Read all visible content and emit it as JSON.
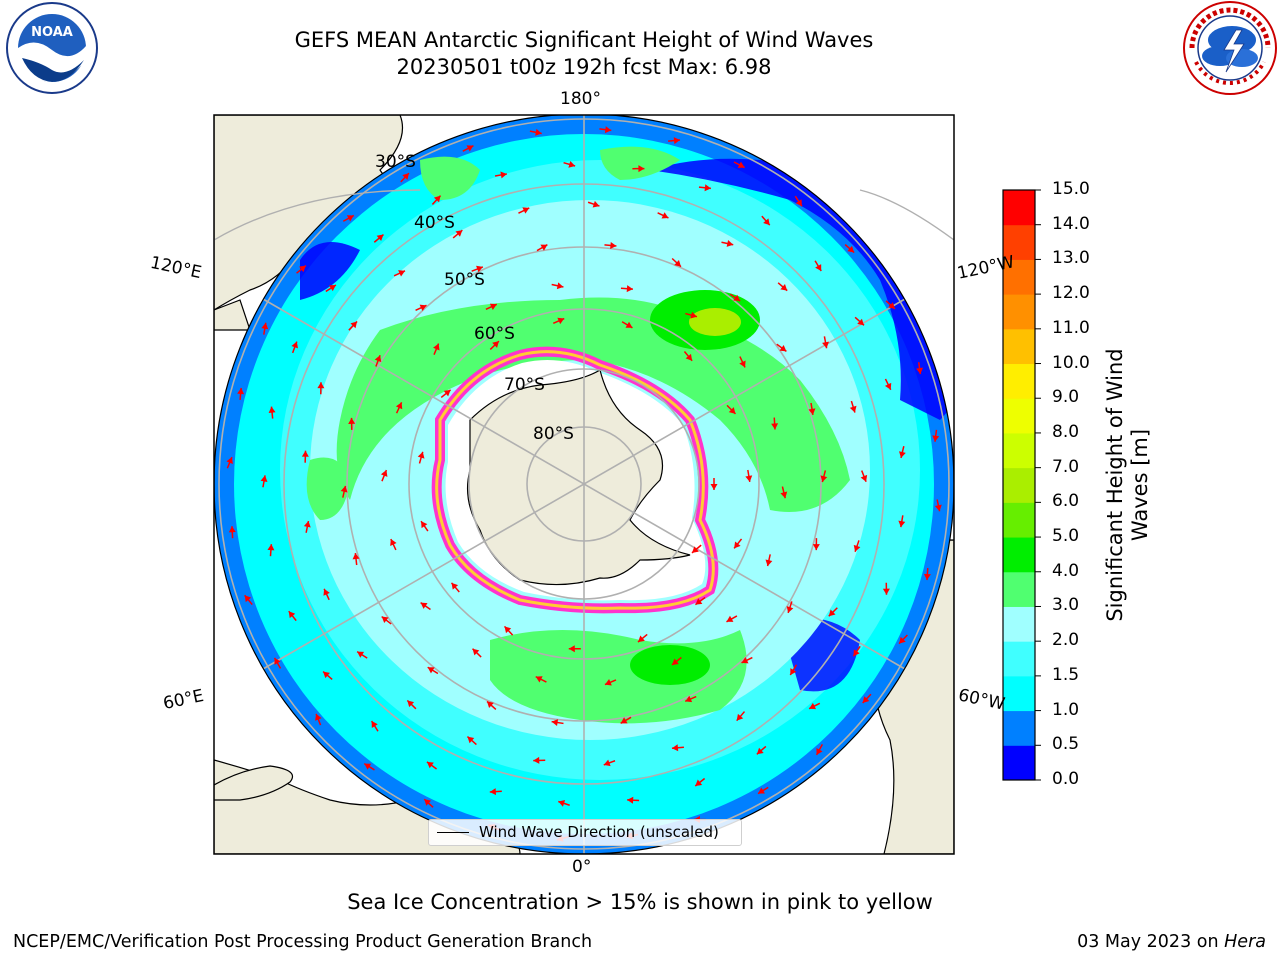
{
  "title": {
    "line1": "GEFS MEAN Antarctic Significant Height of Wind Waves",
    "line2": "20230501 t00z 192h fcst   Max: 6.98"
  },
  "map": {
    "projection": "south-polar-stereographic",
    "longitude_labels": {
      "top": "180°",
      "bottom": "0°",
      "upper_left": "120°E",
      "upper_right": "120°W",
      "lower_left": "60°E",
      "lower_right": "60°W"
    },
    "latitude_labels": [
      "30°S",
      "40°S",
      "50°S",
      "60°S",
      "70°S",
      "80°S"
    ],
    "legend_label": "Wind Wave Direction (unscaled)",
    "ice_colors": [
      "#ff33cc",
      "#ff66ff",
      "#ffcc33"
    ],
    "arrow_color": "#ff0000",
    "land_color": "#eeecdb",
    "grid_color": "#b0b0b0"
  },
  "colorbar": {
    "title_line1": "Significant Height of Wind",
    "title_line2": "Waves [m]",
    "ticks": [
      "0.0",
      "0.5",
      "1.0",
      "1.5",
      "2.0",
      "3.0",
      "4.0",
      "5.0",
      "6.0",
      "7.0",
      "8.0",
      "9.0",
      "10.0",
      "11.0",
      "12.0",
      "13.0",
      "14.0",
      "15.0"
    ],
    "colors": [
      "#0000ff",
      "#0080ff",
      "#00ffff",
      "#40ffff",
      "#a0ffff",
      "#50ff70",
      "#00ee00",
      "#66ee00",
      "#aaee00",
      "#ccff00",
      "#eeff00",
      "#ffee00",
      "#ffc000",
      "#ff9000",
      "#ff7000",
      "#ff4000",
      "#ff0000"
    ]
  },
  "ice_note": "Sea Ice Concentration > 15% is shown in pink to yellow",
  "footer": {
    "left": "NCEP/EMC/Verification Post Processing Product Generation Branch",
    "right_date": "03 May 2023 on ",
    "right_machine": "Hera"
  },
  "logos": {
    "left_text": "NOAA",
    "right_text": "NATIONAL WEATHER SERVICE"
  }
}
